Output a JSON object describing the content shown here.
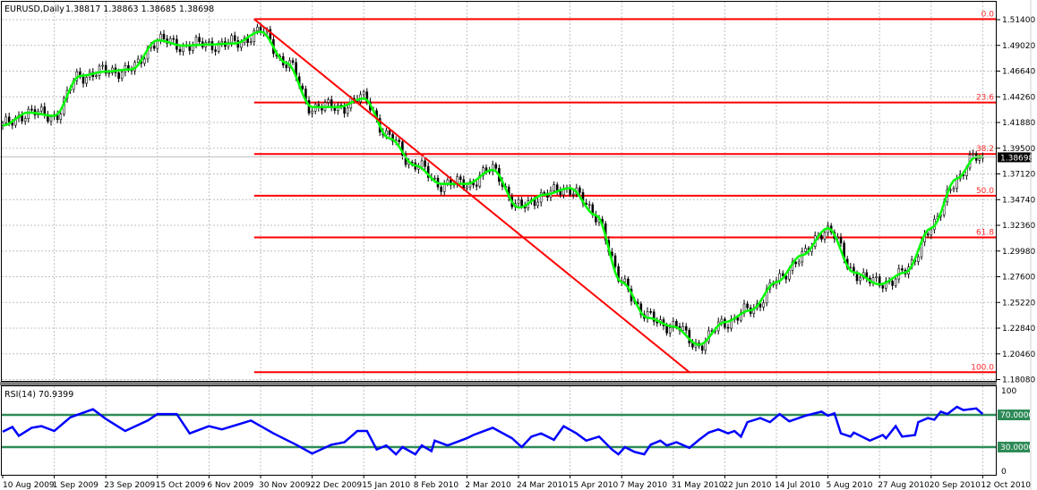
{
  "header": {
    "symbol_timeframe": "EURUSD,Daily",
    "ohlc": "1.38817 1.38863 1.38685 1.38698"
  },
  "rsi_label": "RSI(14) 70.9399",
  "current_price_label": "1.38698",
  "colors": {
    "ma_line": "#00ff00",
    "fib": "#ff0000",
    "rsi_line": "#0000ff",
    "rsi_levels": "#2e8b57",
    "candle": "#000000",
    "background": "#ffffff"
  },
  "chart_data": [
    {
      "type": "candlestick",
      "title": "EURUSD,Daily",
      "x_unit": "bar index (daily)",
      "x_range": [
        0,
        304
      ],
      "ylim": [
        1.1808,
        1.514
      ],
      "grid": true,
      "y_ticks": [
        "1.51400",
        "1.49020",
        "1.46640",
        "1.44260",
        "1.41880",
        "1.39500",
        "1.37120",
        "1.34740",
        "1.32360",
        "1.29980",
        "1.27600",
        "1.25220",
        "1.22840",
        "1.20460",
        "1.18080"
      ],
      "x_ticks": [
        {
          "bar": 0,
          "label": "10 Aug 2009"
        },
        {
          "bar": 16,
          "label": "1 Sep 2009"
        },
        {
          "bar": 32,
          "label": "23 Sep 2009"
        },
        {
          "bar": 48,
          "label": "15 Oct 2009"
        },
        {
          "bar": 64,
          "label": "6 Nov 2009"
        },
        {
          "bar": 80,
          "label": "30 Nov 2009"
        },
        {
          "bar": 96,
          "label": "22 Dec 2009"
        },
        {
          "bar": 112,
          "label": "15 Jan 2010"
        },
        {
          "bar": 128,
          "label": "8 Feb 2010"
        },
        {
          "bar": 144,
          "label": "2 Mar 2010"
        },
        {
          "bar": 160,
          "label": "24 Mar 2010"
        },
        {
          "bar": 176,
          "label": "15 Apr 2010"
        },
        {
          "bar": 192,
          "label": "7 May 2010"
        },
        {
          "bar": 208,
          "label": "31 May 2010"
        },
        {
          "bar": 224,
          "label": "22 Jun 2010"
        },
        {
          "bar": 240,
          "label": "14 Jul 2010"
        },
        {
          "bar": 256,
          "label": "5 Aug 2010"
        },
        {
          "bar": 272,
          "label": "27 Aug 2010"
        },
        {
          "bar": 288,
          "label": "20 Sep 2010"
        },
        {
          "bar": 304,
          "label": "12 Oct 2010"
        }
      ],
      "close_samples": [
        [
          0,
          1.416
        ],
        [
          8,
          1.428
        ],
        [
          16,
          1.425
        ],
        [
          24,
          1.462
        ],
        [
          32,
          1.466
        ],
        [
          40,
          1.468
        ],
        [
          48,
          1.495
        ],
        [
          56,
          1.49
        ],
        [
          64,
          1.491
        ],
        [
          72,
          1.492
        ],
        [
          80,
          1.503
        ],
        [
          88,
          1.474
        ],
        [
          96,
          1.433
        ],
        [
          104,
          1.433
        ],
        [
          112,
          1.441
        ],
        [
          120,
          1.404
        ],
        [
          128,
          1.379
        ],
        [
          136,
          1.362
        ],
        [
          144,
          1.362
        ],
        [
          152,
          1.375
        ],
        [
          160,
          1.34
        ],
        [
          168,
          1.352
        ],
        [
          176,
          1.358
        ],
        [
          184,
          1.333
        ],
        [
          192,
          1.271
        ],
        [
          200,
          1.238
        ],
        [
          208,
          1.23
        ],
        [
          216,
          1.213
        ],
        [
          224,
          1.234
        ],
        [
          232,
          1.245
        ],
        [
          240,
          1.271
        ],
        [
          248,
          1.296
        ],
        [
          256,
          1.321
        ],
        [
          264,
          1.28
        ],
        [
          272,
          1.269
        ],
        [
          280,
          1.28
        ],
        [
          288,
          1.321
        ],
        [
          296,
          1.367
        ],
        [
          302,
          1.387
        ],
        [
          304,
          1.38698
        ]
      ],
      "last_price": 1.38698,
      "fibonacci": {
        "from": {
          "bar": 78,
          "price": 1.5145
        },
        "to": {
          "bar": 213,
          "price": 1.1876
        },
        "levels": [
          {
            "label": "0.0",
            "ratio": 0.0
          },
          {
            "label": "23.6",
            "ratio": 0.236
          },
          {
            "label": "38.2",
            "ratio": 0.382
          },
          {
            "label": "50.0",
            "ratio": 0.5
          },
          {
            "label": "61.8",
            "ratio": 0.618
          },
          {
            "label": "100.0",
            "ratio": 1.0
          }
        ]
      }
    },
    {
      "type": "line",
      "title": "RSI(14) 70.9399",
      "ylim": [
        0,
        100
      ],
      "y_ticks": [
        "100",
        "70.0000",
        "30.0000",
        "0"
      ],
      "levels": [
        70,
        30
      ],
      "points": [
        [
          0,
          49
        ],
        [
          3,
          55
        ],
        [
          5,
          44
        ],
        [
          9,
          54
        ],
        [
          12,
          56
        ],
        [
          16,
          50
        ],
        [
          21,
          67
        ],
        [
          28,
          77
        ],
        [
          32,
          65
        ],
        [
          38,
          50
        ],
        [
          45,
          63
        ],
        [
          48,
          71
        ],
        [
          54,
          71
        ],
        [
          58,
          47
        ],
        [
          64,
          56
        ],
        [
          68,
          52
        ],
        [
          77,
          63
        ],
        [
          84,
          47
        ],
        [
          91,
          33
        ],
        [
          96,
          22
        ],
        [
          102,
          33
        ],
        [
          106,
          36
        ],
        [
          110,
          50
        ],
        [
          113,
          50
        ],
        [
          116,
          27
        ],
        [
          119,
          32
        ],
        [
          122,
          21
        ],
        [
          124,
          30
        ],
        [
          128,
          21
        ],
        [
          130,
          32
        ],
        [
          133,
          25
        ],
        [
          134,
          38
        ],
        [
          138,
          32
        ],
        [
          144,
          41
        ],
        [
          146,
          45
        ],
        [
          152,
          54
        ],
        [
          158,
          41
        ],
        [
          161,
          30
        ],
        [
          164,
          43
        ],
        [
          167,
          47
        ],
        [
          171,
          39
        ],
        [
          174,
          56
        ],
        [
          178,
          47
        ],
        [
          181,
          38
        ],
        [
          185,
          43
        ],
        [
          189,
          27
        ],
        [
          191,
          21
        ],
        [
          193,
          30
        ],
        [
          196,
          24
        ],
        [
          199,
          21
        ],
        [
          201,
          33
        ],
        [
          204,
          38
        ],
        [
          206,
          32
        ],
        [
          209,
          36
        ],
        [
          213,
          29
        ],
        [
          216,
          39
        ],
        [
          219,
          48
        ],
        [
          222,
          52
        ],
        [
          225,
          47
        ],
        [
          227,
          50
        ],
        [
          229,
          43
        ],
        [
          231,
          61
        ],
        [
          235,
          66
        ],
        [
          238,
          61
        ],
        [
          241,
          71
        ],
        [
          244,
          62
        ],
        [
          249,
          69
        ],
        [
          254,
          74
        ],
        [
          256,
          69
        ],
        [
          258,
          72
        ],
        [
          260,
          47
        ],
        [
          263,
          43
        ],
        [
          264,
          48
        ],
        [
          269,
          38
        ],
        [
          273,
          45
        ],
        [
          274,
          41
        ],
        [
          277,
          56
        ],
        [
          279,
          43
        ],
        [
          283,
          45
        ],
        [
          284,
          61
        ],
        [
          287,
          66
        ],
        [
          289,
          64
        ],
        [
          291,
          74
        ],
        [
          293,
          71
        ],
        [
          296,
          80
        ],
        [
          298,
          76
        ],
        [
          302,
          78
        ],
        [
          304,
          71
        ]
      ]
    }
  ]
}
